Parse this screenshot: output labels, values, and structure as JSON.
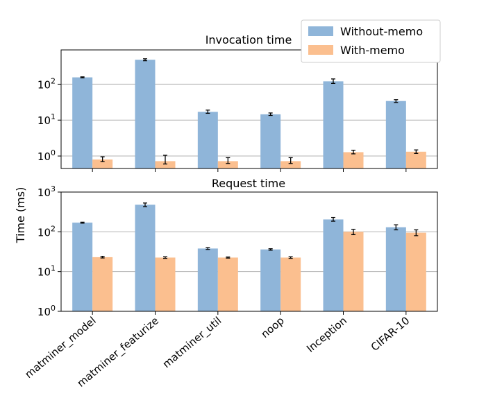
{
  "chart_data": {
    "type": "bar",
    "scale": "log",
    "ylabel": "Time (ms)",
    "categories": [
      "matminer_model",
      "matminer_featurize",
      "matminer_util",
      "noop",
      "Inception",
      "CIFAR-10"
    ],
    "legend": {
      "placement": "top-right",
      "entries": [
        {
          "name": "Without-memo",
          "color": "#8fb5d9"
        },
        {
          "name": "With-memo",
          "color": "#fbbf8f"
        }
      ]
    },
    "panels": [
      {
        "title": "Invocation time",
        "ylim": [
          0.45,
          900
        ],
        "ticks": [
          {
            "value": 1,
            "base": "10",
            "exp": "0"
          },
          {
            "value": 10,
            "base": "10",
            "exp": "1"
          },
          {
            "value": 100,
            "base": "10",
            "exp": "2"
          }
        ],
        "series": [
          {
            "name": "Without-memo",
            "values": [
              155,
              480,
              17,
              14.5,
              120,
              34
            ],
            "err_low": [
              150,
              450,
              15.5,
              13.5,
              105,
              31
            ],
            "err_high": [
              160,
              510,
              19,
              15.8,
              140,
              37
            ]
          },
          {
            "name": "With-memo",
            "values": [
              0.8,
              0.72,
              0.72,
              0.72,
              1.28,
              1.32
            ],
            "err_low": [
              0.7,
              0.6,
              0.62,
              0.62,
              1.15,
              1.18
            ],
            "err_high": [
              0.95,
              1.05,
              0.9,
              0.9,
              1.45,
              1.48
            ]
          }
        ]
      },
      {
        "title": "Request time",
        "ylim": [
          1,
          1000
        ],
        "ticks": [
          {
            "value": 1,
            "base": "10",
            "exp": "0"
          },
          {
            "value": 10,
            "base": "10",
            "exp": "1"
          },
          {
            "value": 100,
            "base": "10",
            "exp": "2"
          },
          {
            "value": 1000,
            "base": "10",
            "exp": "3"
          }
        ],
        "series": [
          {
            "name": "Without-memo",
            "values": [
              170,
              480,
              38,
              36,
              205,
              130
            ],
            "err_low": [
              165,
              430,
              36,
              34.5,
              185,
              112
            ],
            "err_high": [
              175,
              530,
              40,
              37.5,
              230,
              150
            ]
          },
          {
            "name": "With-memo",
            "values": [
              23,
              22.5,
              22.5,
              22.5,
              100,
              95
            ],
            "err_low": [
              22,
              21.5,
              21.8,
              21.5,
              85,
              80
            ],
            "err_high": [
              24.2,
              23.5,
              23.2,
              23.5,
              115,
              112
            ]
          }
        ]
      }
    ]
  }
}
